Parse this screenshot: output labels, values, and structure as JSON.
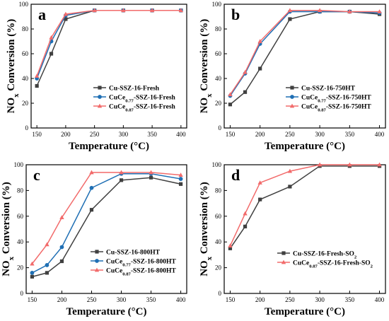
{
  "chart_data": [
    {
      "type": "line",
      "panel": "a",
      "xlabel": "Temperature (°C)",
      "ylabel_main": "NO",
      "ylabel_sub": "x",
      "ylabel_rest": " Conversion (%)",
      "xlim": [
        140,
        410
      ],
      "ylim": [
        0,
        100
      ],
      "xticks": [
        150,
        200,
        250,
        300,
        350,
        400
      ],
      "yticks": [
        0,
        20,
        40,
        60,
        80,
        100
      ],
      "x": [
        150,
        175,
        200,
        250,
        300,
        350,
        400
      ],
      "series": [
        {
          "name_parts": [
            "Cu-SSZ-16-Fresh"
          ],
          "subs": [],
          "color": "#404040",
          "marker": "square",
          "values": [
            34,
            60,
            88,
            95,
            95,
            95,
            95
          ]
        },
        {
          "name_parts": [
            "CuCe",
            "0.77",
            "-SSZ-16-Fresh"
          ],
          "subs": [
            1
          ],
          "color": "#1f6fb4",
          "marker": "circle",
          "values": [
            40,
            70,
            91,
            95,
            95,
            95,
            95
          ]
        },
        {
          "name_parts": [
            "CuCe",
            "0.87",
            "-SSZ-16-Fresh"
          ],
          "subs": [
            1
          ],
          "color": "#f26b6b",
          "marker": "triangle",
          "values": [
            42,
            73,
            92,
            95,
            95,
            95,
            95
          ]
        }
      ]
    },
    {
      "type": "line",
      "panel": "b",
      "xlabel": "Temperature (°C)",
      "ylabel_main": "NO",
      "ylabel_sub": "x",
      "ylabel_rest": " Conversion (%)",
      "xlim": [
        140,
        410
      ],
      "ylim": [
        0,
        100
      ],
      "xticks": [
        150,
        200,
        250,
        300,
        350,
        400
      ],
      "yticks": [
        0,
        20,
        40,
        60,
        80,
        100
      ],
      "x": [
        150,
        175,
        200,
        250,
        300,
        350,
        400
      ],
      "series": [
        {
          "name_parts": [
            "Cu-SSZ-16-750HT"
          ],
          "subs": [],
          "color": "#404040",
          "marker": "square",
          "values": [
            19,
            29,
            48,
            88,
            94,
            94,
            92
          ]
        },
        {
          "name_parts": [
            "CuCe",
            "0.77",
            "-SSZ-16-750HT"
          ],
          "subs": [
            1
          ],
          "color": "#1f6fb4",
          "marker": "circle",
          "values": [
            26,
            44,
            68,
            94,
            94,
            94,
            93
          ]
        },
        {
          "name_parts": [
            "CuCe",
            "0.87",
            "-SSZ-16-750HT"
          ],
          "subs": [
            1
          ],
          "color": "#f26b6b",
          "marker": "triangle",
          "values": [
            27,
            45,
            70,
            95,
            95,
            94,
            94
          ]
        }
      ]
    },
    {
      "type": "line",
      "panel": "c",
      "xlabel": "Temperature (°C)",
      "ylabel_main": "NO",
      "ylabel_sub": "x",
      "ylabel_rest": " Conversion (%)",
      "xlim": [
        140,
        410
      ],
      "ylim": [
        0,
        100
      ],
      "xticks": [
        150,
        200,
        250,
        300,
        350,
        400
      ],
      "yticks": [
        0,
        20,
        40,
        60,
        80,
        100
      ],
      "x": [
        150,
        175,
        200,
        250,
        300,
        350,
        400
      ],
      "series": [
        {
          "name_parts": [
            "Cu-SSZ-16-800HT"
          ],
          "subs": [],
          "color": "#404040",
          "marker": "square",
          "values": [
            13,
            16,
            25,
            65,
            88,
            90,
            85
          ]
        },
        {
          "name_parts": [
            "CuCe",
            "0.77",
            "-SSZ-16-800HT"
          ],
          "subs": [
            1
          ],
          "color": "#1f6fb4",
          "marker": "circle",
          "values": [
            16,
            22,
            36,
            82,
            93,
            93,
            89
          ]
        },
        {
          "name_parts": [
            "CuCe",
            "0.87",
            "-SSZ-16-800HT"
          ],
          "subs": [
            1
          ],
          "color": "#f26b6b",
          "marker": "triangle",
          "values": [
            23,
            38,
            59,
            94,
            94,
            94,
            92
          ]
        }
      ]
    },
    {
      "type": "line",
      "panel": "d",
      "xlabel": "Temperature (°C)",
      "ylabel_main": "NO",
      "ylabel_sub": "x",
      "ylabel_rest": " Conversion (%)",
      "xlim": [
        140,
        410
      ],
      "ylim": [
        0,
        100
      ],
      "xticks": [
        150,
        200,
        250,
        300,
        350,
        400
      ],
      "yticks": [
        0,
        20,
        40,
        60,
        80,
        100
      ],
      "x": [
        150,
        175,
        200,
        250,
        300,
        350,
        400
      ],
      "series": [
        {
          "name_parts": [
            "Cu-SSZ-16-Fresh-SO",
            "2"
          ],
          "subs": [
            1
          ],
          "color": "#404040",
          "marker": "square",
          "values": [
            35,
            52,
            73,
            83,
            99,
            99,
            99
          ]
        },
        {
          "name_parts": [
            "CuCe",
            "0.87",
            "-SSZ-16-Fresh-SO",
            "2"
          ],
          "subs": [
            1,
            3
          ],
          "color": "#f26b6b",
          "marker": "triangle",
          "values": [
            37,
            62,
            86,
            95,
            100,
            100,
            100
          ]
        }
      ]
    }
  ]
}
